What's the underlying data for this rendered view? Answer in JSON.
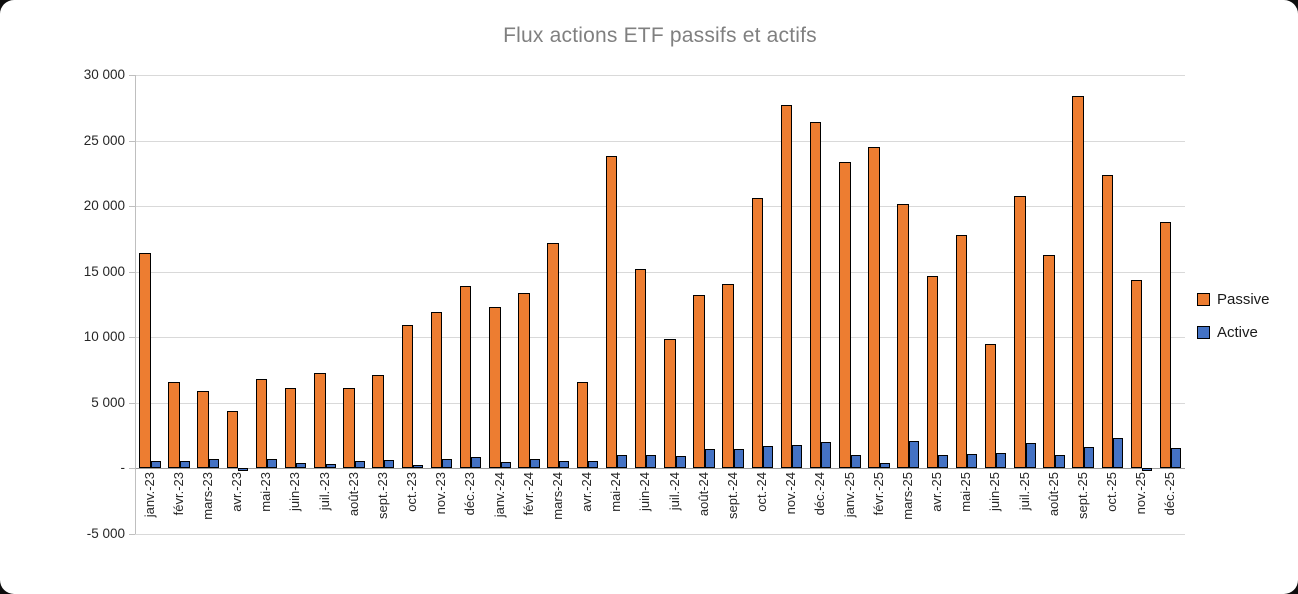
{
  "window": {
    "title": "Flux actions ETF passifs et actifs"
  },
  "chart_data": {
    "type": "bar",
    "title": "Flux actions ETF passifs et actifs",
    "xlabel": "",
    "ylabel": "",
    "ylim": [
      -5000,
      30000
    ],
    "grid": true,
    "legend_position": "right",
    "categories": [
      "janv.-23",
      "févr.-23",
      "mars-23",
      "avr.-23",
      "mai-23",
      "juin-23",
      "juil.-23",
      "août-23",
      "sept.-23",
      "oct.-23",
      "nov.-23",
      "déc.-23",
      "janv.-24",
      "févr.-24",
      "mars-24",
      "avr.-24",
      "mai-24",
      "juin-24",
      "juil.-24",
      "août-24",
      "sept.-24",
      "oct.-24",
      "nov.-24",
      "déc.-24",
      "janv.-25",
      "févr.-25",
      "mars-25",
      "avr.-25",
      "mai-25",
      "juin-25",
      "juil.-25",
      "août-25",
      "sept.-25",
      "oct.-25",
      "nov.-25",
      "déc.-25"
    ],
    "series": [
      {
        "name": "Passive",
        "color": "#ED7D31",
        "border_color": "#000000",
        "values": [
          16400,
          6600,
          5900,
          4400,
          6800,
          6100,
          7300,
          6100,
          7100,
          10900,
          11900,
          13900,
          12300,
          13400,
          17200,
          6600,
          23800,
          15200,
          9900,
          13200,
          14100,
          20600,
          27700,
          26400,
          23400,
          24500,
          20200,
          14700,
          17800,
          9500,
          20800,
          16300,
          28400,
          22400,
          14400,
          18800
        ]
      },
      {
        "name": "Active",
        "color": "#4472C4",
        "border_color": "#000000",
        "values": [
          550,
          550,
          750,
          -150,
          700,
          400,
          300,
          600,
          650,
          250,
          750,
          850,
          500,
          700,
          600,
          600,
          1000,
          1000,
          950,
          1500,
          1450,
          1700,
          1800,
          2000,
          1050,
          450,
          2100,
          1000,
          1100,
          1150,
          1950,
          1000,
          1650,
          2300,
          -150,
          1550
        ]
      }
    ],
    "y_ticks": [
      {
        "value": 30000,
        "label": "30 000"
      },
      {
        "value": 25000,
        "label": "25 000"
      },
      {
        "value": 20000,
        "label": "20 000"
      },
      {
        "value": 15000,
        "label": "15 000"
      },
      {
        "value": 10000,
        "label": "10 000"
      },
      {
        "value": 5000,
        "label": "5 000"
      },
      {
        "value": 0,
        "label": "-"
      },
      {
        "value": -5000,
        "label": "-5 000"
      }
    ]
  }
}
